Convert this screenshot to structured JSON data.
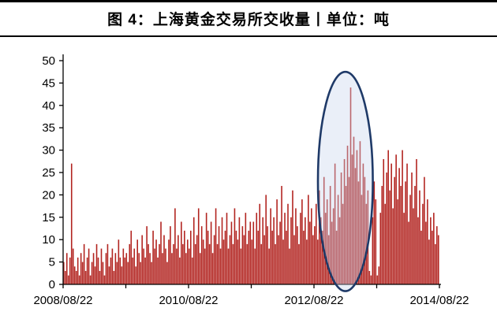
{
  "title": "图 4：上海黄金交易所交收量丨单位：吨",
  "chart_data": {
    "type": "bar",
    "title": "图 4：上海黄金交易所交收量丨单位：吨",
    "unit": "吨",
    "xlabel": "",
    "ylabel": "",
    "ylim": [
      0,
      50
    ],
    "y_ticks": [
      0,
      5,
      10,
      15,
      20,
      25,
      30,
      35,
      40,
      45,
      50
    ],
    "x_tick_labels": [
      "2008/08/22",
      "2010/08/22",
      "2012/08/22",
      "2014/08/22"
    ],
    "grid": false,
    "legend": "none",
    "bar_color": "#B22420",
    "axis_color": "#000000",
    "values": [
      5,
      3,
      7,
      2,
      6,
      27,
      8,
      4,
      3,
      6,
      2,
      7,
      5,
      9,
      3,
      6,
      8,
      2,
      5,
      7,
      4,
      9,
      6,
      3,
      8,
      5,
      2,
      7,
      9,
      4,
      6,
      8,
      3,
      7,
      5,
      10,
      6,
      4,
      8,
      6,
      7,
      5,
      9,
      12,
      6,
      8,
      4,
      10,
      7,
      5,
      11,
      8,
      6,
      13,
      9,
      7,
      5,
      12,
      8,
      10,
      6,
      9,
      14,
      7,
      11,
      8,
      5,
      10,
      13,
      7,
      9,
      17,
      8,
      11,
      6,
      14,
      9,
      12,
      7,
      10,
      8,
      12,
      6,
      15,
      9,
      11,
      17,
      7,
      13,
      10,
      8,
      16,
      12,
      9,
      14,
      7,
      11,
      17,
      9,
      13,
      8,
      15,
      10,
      12,
      16,
      8,
      11,
      14,
      9,
      17,
      12,
      10,
      15,
      8,
      13,
      11,
      16,
      9,
      12,
      14,
      10,
      14,
      8,
      16,
      12,
      18,
      9,
      15,
      11,
      20,
      13,
      8,
      17,
      12,
      15,
      9,
      19,
      11,
      14,
      22,
      10,
      16,
      12,
      18,
      8,
      15,
      21,
      11,
      17,
      13,
      9,
      16,
      19,
      12,
      15,
      10,
      20,
      14,
      17,
      11,
      13,
      18,
      10,
      21,
      15,
      12,
      24,
      16,
      19,
      11,
      22,
      14,
      17,
      27,
      12,
      20,
      15,
      25,
      18,
      28,
      22,
      31,
      24,
      44,
      29,
      33,
      26,
      30,
      23,
      32,
      20,
      27,
      24,
      18,
      21,
      3,
      2,
      15,
      23,
      19,
      2,
      4,
      16,
      22,
      28,
      18,
      25,
      30,
      21,
      27,
      17,
      24,
      29,
      19,
      26,
      22,
      30,
      16,
      23,
      27,
      14,
      20,
      25,
      17,
      22,
      28,
      15,
      21,
      12,
      18,
      24,
      14,
      19,
      10,
      15,
      12,
      16,
      9,
      13,
      11
    ],
    "annotation_ellipse": {
      "description": "highlight of 2013 delivery-volume spike",
      "center_x_fraction": 0.75,
      "radius_x_fraction": 0.073,
      "center_y_value": 23,
      "radius_y_value": 24.5,
      "stroke_color": "#1F3A68",
      "fill_color": "#C9D4EC",
      "fill_opacity": 0.38
    }
  }
}
